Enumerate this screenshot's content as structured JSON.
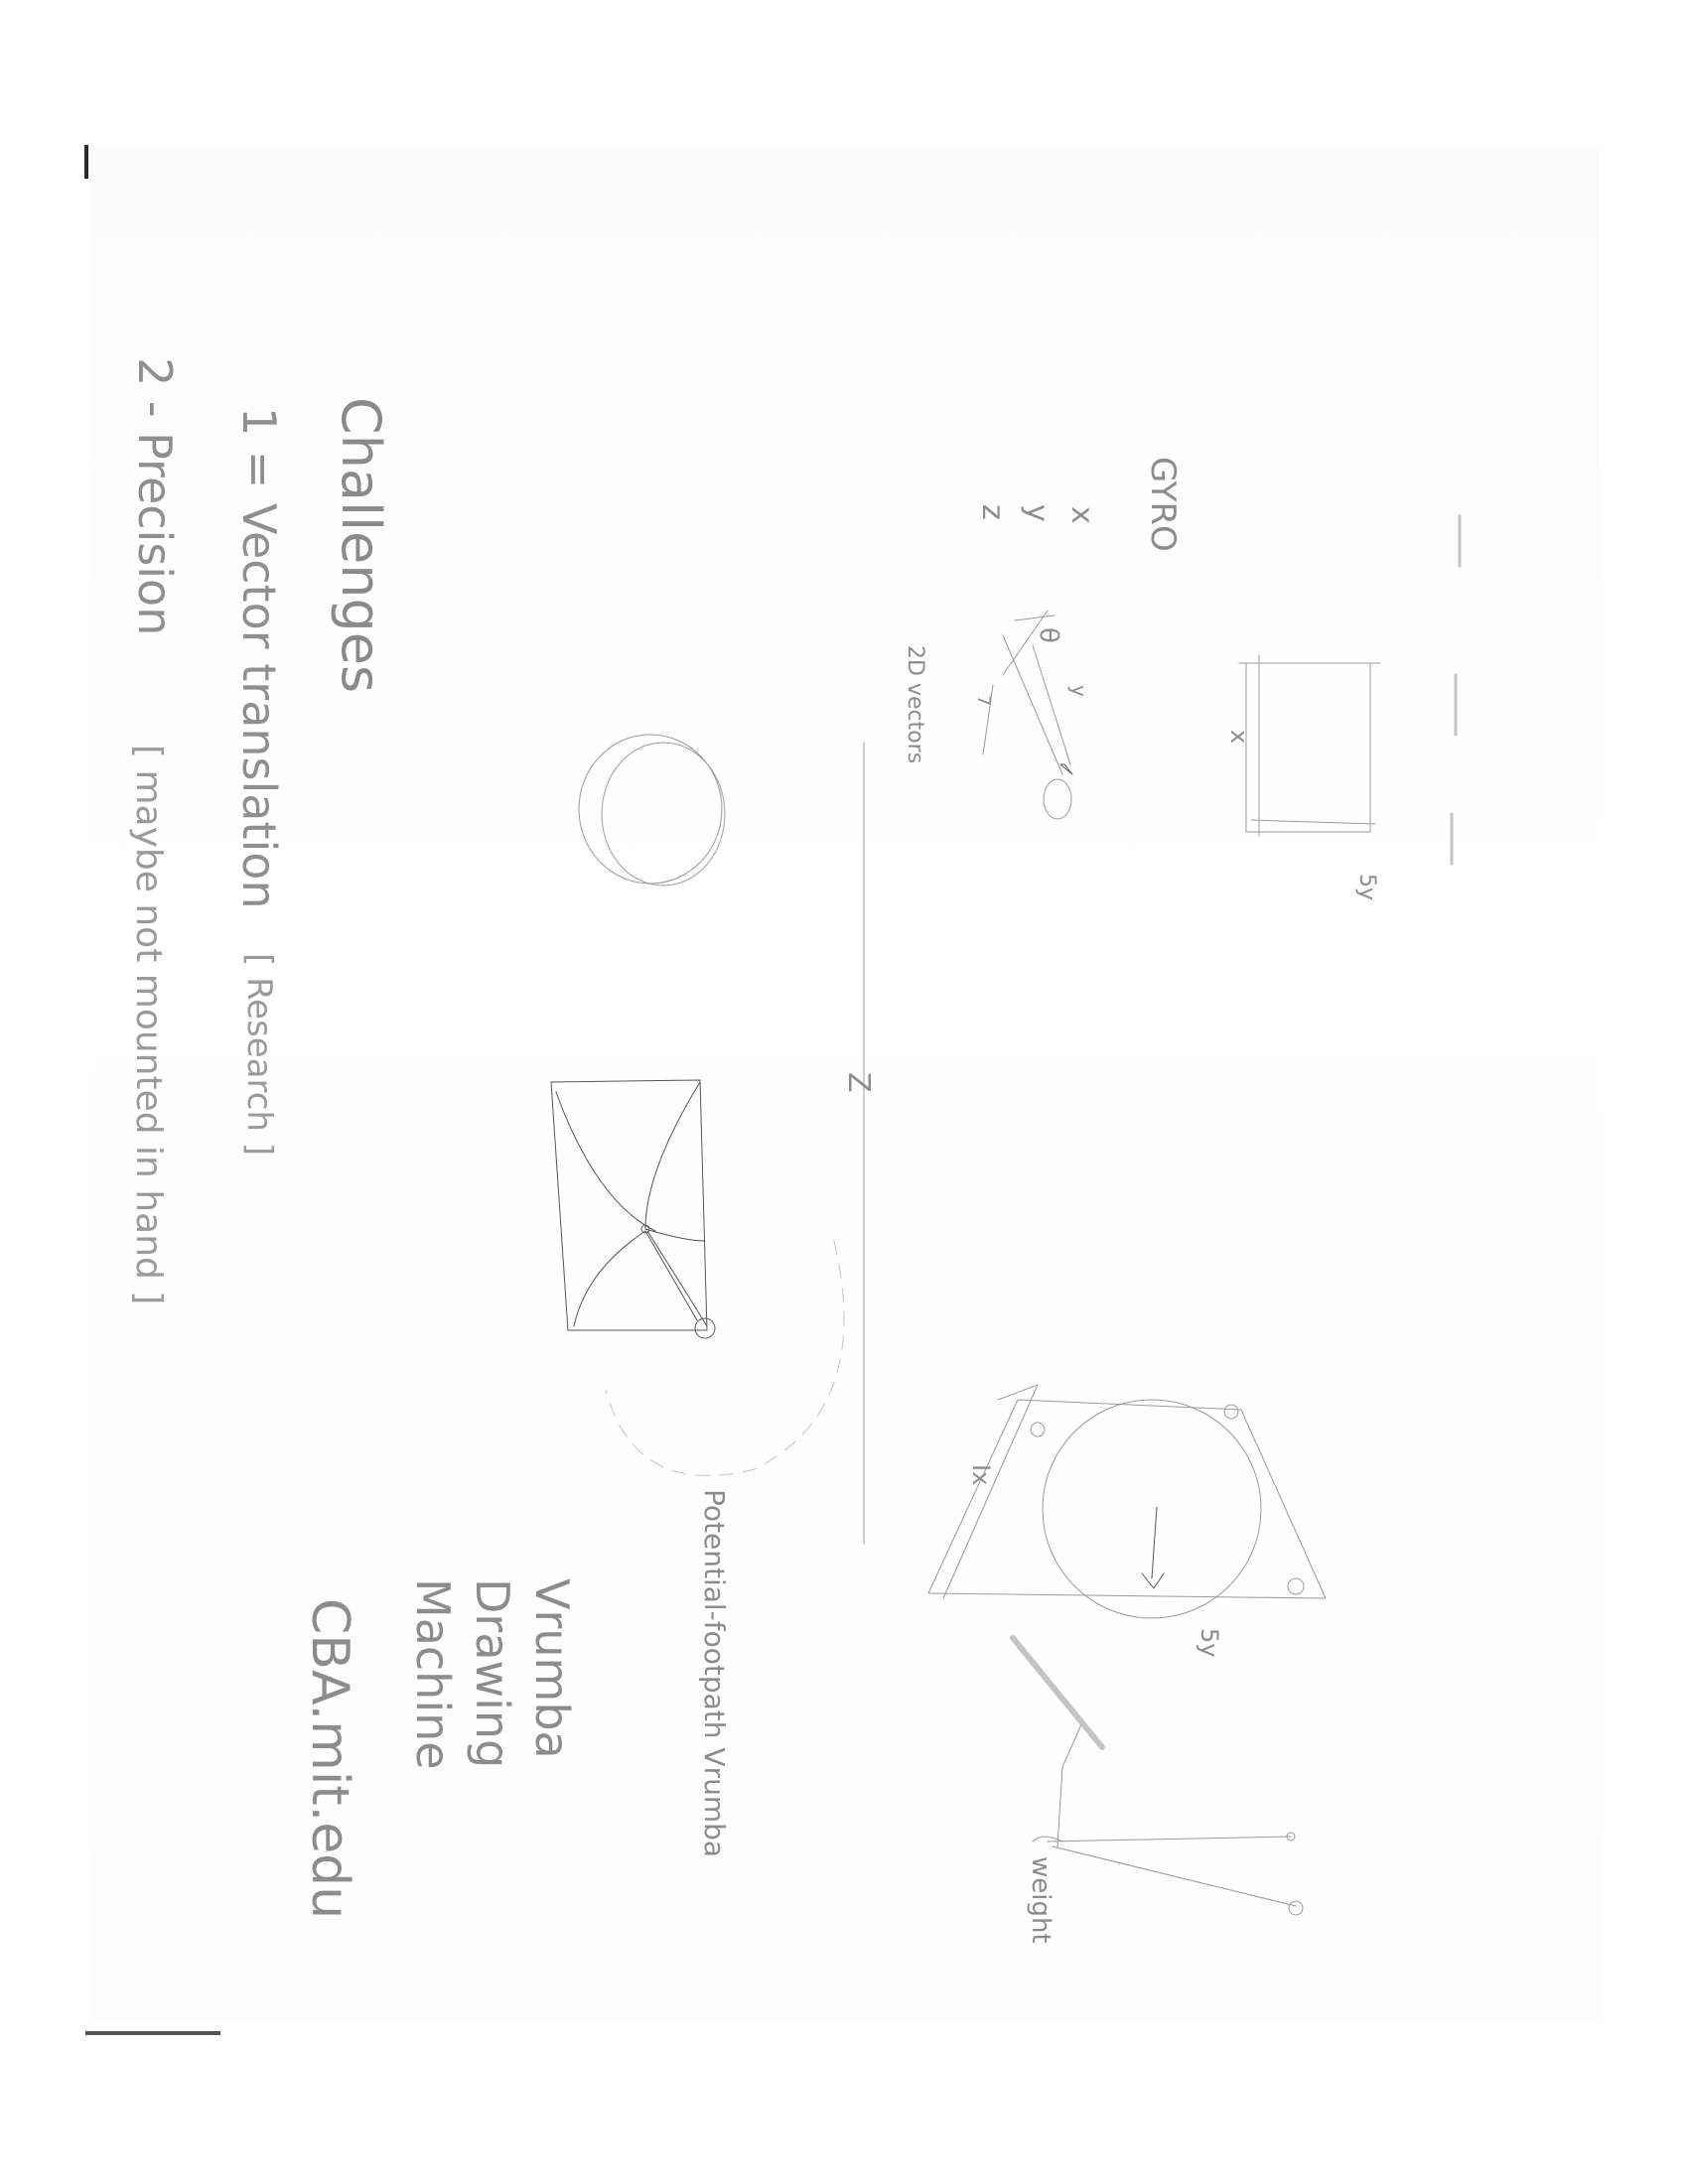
{
  "notes": {
    "title": "Challenges",
    "item1": "1 = Vector translation",
    "item1_note": "[ Research ]",
    "item2": "2 - Precision",
    "item2_note": "[ maybe not mounted in hand ]"
  },
  "gyro": {
    "label": "GYRO",
    "axis_x": "x",
    "axis_y": "y",
    "axis_z": "z",
    "vectors_label": "2D vectors",
    "angle_label": "θ",
    "small_label": "y",
    "seven": "7",
    "origin": "0"
  },
  "box": {
    "side_x": "x",
    "side_5y": "5y"
  },
  "divider": {
    "mark": "Z"
  },
  "trapezoid": {
    "left_label": "Ix",
    "bottom_label": "5y"
  },
  "labels": {
    "potential": "Potential-footpath Vrumba",
    "vrumba1": "Vrumba",
    "vrumba2": "Drawing",
    "vrumba3": "Machine",
    "site": "CBA.mit.edu",
    "weight": "weight"
  }
}
